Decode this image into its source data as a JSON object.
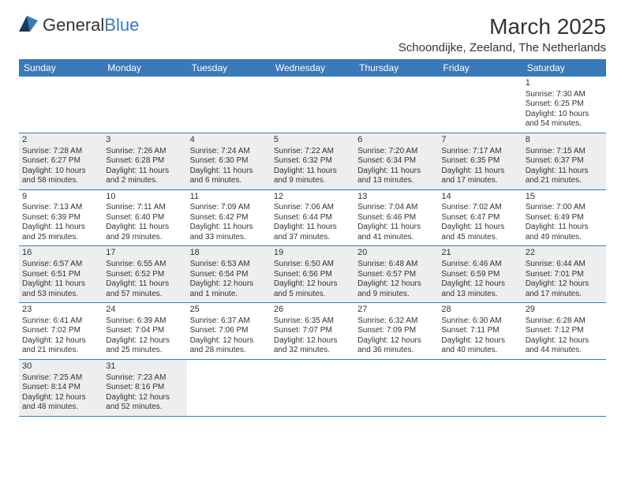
{
  "logo": {
    "text_a": "General",
    "text_b": "Blue"
  },
  "title": "March 2025",
  "location": "Schoondijke, Zeeland, The Netherlands",
  "colors": {
    "header_bg": "#3a7ab8",
    "header_text": "#ffffff",
    "shaded_bg": "#eeeeee",
    "border": "#3a7ab8",
    "text": "#333333"
  },
  "day_headers": [
    "Sunday",
    "Monday",
    "Tuesday",
    "Wednesday",
    "Thursday",
    "Friday",
    "Saturday"
  ],
  "weeks": [
    [
      {
        "blank": true
      },
      {
        "blank": true
      },
      {
        "blank": true
      },
      {
        "blank": true
      },
      {
        "blank": true
      },
      {
        "blank": true
      },
      {
        "n": "1",
        "sr": "Sunrise: 7:30 AM",
        "ss": "Sunset: 6:25 PM",
        "dl": "Daylight: 10 hours and 54 minutes.",
        "shade": false
      }
    ],
    [
      {
        "n": "2",
        "sr": "Sunrise: 7:28 AM",
        "ss": "Sunset: 6:27 PM",
        "dl": "Daylight: 10 hours and 58 minutes.",
        "shade": true
      },
      {
        "n": "3",
        "sr": "Sunrise: 7:26 AM",
        "ss": "Sunset: 6:28 PM",
        "dl": "Daylight: 11 hours and 2 minutes.",
        "shade": true
      },
      {
        "n": "4",
        "sr": "Sunrise: 7:24 AM",
        "ss": "Sunset: 6:30 PM",
        "dl": "Daylight: 11 hours and 6 minutes.",
        "shade": true
      },
      {
        "n": "5",
        "sr": "Sunrise: 7:22 AM",
        "ss": "Sunset: 6:32 PM",
        "dl": "Daylight: 11 hours and 9 minutes.",
        "shade": true
      },
      {
        "n": "6",
        "sr": "Sunrise: 7:20 AM",
        "ss": "Sunset: 6:34 PM",
        "dl": "Daylight: 11 hours and 13 minutes.",
        "shade": true
      },
      {
        "n": "7",
        "sr": "Sunrise: 7:17 AM",
        "ss": "Sunset: 6:35 PM",
        "dl": "Daylight: 11 hours and 17 minutes.",
        "shade": true
      },
      {
        "n": "8",
        "sr": "Sunrise: 7:15 AM",
        "ss": "Sunset: 6:37 PM",
        "dl": "Daylight: 11 hours and 21 minutes.",
        "shade": true
      }
    ],
    [
      {
        "n": "9",
        "sr": "Sunrise: 7:13 AM",
        "ss": "Sunset: 6:39 PM",
        "dl": "Daylight: 11 hours and 25 minutes.",
        "shade": false
      },
      {
        "n": "10",
        "sr": "Sunrise: 7:11 AM",
        "ss": "Sunset: 6:40 PM",
        "dl": "Daylight: 11 hours and 29 minutes.",
        "shade": false
      },
      {
        "n": "11",
        "sr": "Sunrise: 7:09 AM",
        "ss": "Sunset: 6:42 PM",
        "dl": "Daylight: 11 hours and 33 minutes.",
        "shade": false
      },
      {
        "n": "12",
        "sr": "Sunrise: 7:06 AM",
        "ss": "Sunset: 6:44 PM",
        "dl": "Daylight: 11 hours and 37 minutes.",
        "shade": false
      },
      {
        "n": "13",
        "sr": "Sunrise: 7:04 AM",
        "ss": "Sunset: 6:46 PM",
        "dl": "Daylight: 11 hours and 41 minutes.",
        "shade": false
      },
      {
        "n": "14",
        "sr": "Sunrise: 7:02 AM",
        "ss": "Sunset: 6:47 PM",
        "dl": "Daylight: 11 hours and 45 minutes.",
        "shade": false
      },
      {
        "n": "15",
        "sr": "Sunrise: 7:00 AM",
        "ss": "Sunset: 6:49 PM",
        "dl": "Daylight: 11 hours and 49 minutes.",
        "shade": false
      }
    ],
    [
      {
        "n": "16",
        "sr": "Sunrise: 6:57 AM",
        "ss": "Sunset: 6:51 PM",
        "dl": "Daylight: 11 hours and 53 minutes.",
        "shade": true
      },
      {
        "n": "17",
        "sr": "Sunrise: 6:55 AM",
        "ss": "Sunset: 6:52 PM",
        "dl": "Daylight: 11 hours and 57 minutes.",
        "shade": true
      },
      {
        "n": "18",
        "sr": "Sunrise: 6:53 AM",
        "ss": "Sunset: 6:54 PM",
        "dl": "Daylight: 12 hours and 1 minute.",
        "shade": true
      },
      {
        "n": "19",
        "sr": "Sunrise: 6:50 AM",
        "ss": "Sunset: 6:56 PM",
        "dl": "Daylight: 12 hours and 5 minutes.",
        "shade": true
      },
      {
        "n": "20",
        "sr": "Sunrise: 6:48 AM",
        "ss": "Sunset: 6:57 PM",
        "dl": "Daylight: 12 hours and 9 minutes.",
        "shade": true
      },
      {
        "n": "21",
        "sr": "Sunrise: 6:46 AM",
        "ss": "Sunset: 6:59 PM",
        "dl": "Daylight: 12 hours and 13 minutes.",
        "shade": true
      },
      {
        "n": "22",
        "sr": "Sunrise: 6:44 AM",
        "ss": "Sunset: 7:01 PM",
        "dl": "Daylight: 12 hours and 17 minutes.",
        "shade": true
      }
    ],
    [
      {
        "n": "23",
        "sr": "Sunrise: 6:41 AM",
        "ss": "Sunset: 7:02 PM",
        "dl": "Daylight: 12 hours and 21 minutes.",
        "shade": false
      },
      {
        "n": "24",
        "sr": "Sunrise: 6:39 AM",
        "ss": "Sunset: 7:04 PM",
        "dl": "Daylight: 12 hours and 25 minutes.",
        "shade": false
      },
      {
        "n": "25",
        "sr": "Sunrise: 6:37 AM",
        "ss": "Sunset: 7:06 PM",
        "dl": "Daylight: 12 hours and 28 minutes.",
        "shade": false
      },
      {
        "n": "26",
        "sr": "Sunrise: 6:35 AM",
        "ss": "Sunset: 7:07 PM",
        "dl": "Daylight: 12 hours and 32 minutes.",
        "shade": false
      },
      {
        "n": "27",
        "sr": "Sunrise: 6:32 AM",
        "ss": "Sunset: 7:09 PM",
        "dl": "Daylight: 12 hours and 36 minutes.",
        "shade": false
      },
      {
        "n": "28",
        "sr": "Sunrise: 6:30 AM",
        "ss": "Sunset: 7:11 PM",
        "dl": "Daylight: 12 hours and 40 minutes.",
        "shade": false
      },
      {
        "n": "29",
        "sr": "Sunrise: 6:28 AM",
        "ss": "Sunset: 7:12 PM",
        "dl": "Daylight: 12 hours and 44 minutes.",
        "shade": false
      }
    ],
    [
      {
        "n": "30",
        "sr": "Sunrise: 7:25 AM",
        "ss": "Sunset: 8:14 PM",
        "dl": "Daylight: 12 hours and 48 minutes.",
        "shade": true
      },
      {
        "n": "31",
        "sr": "Sunrise: 7:23 AM",
        "ss": "Sunset: 8:16 PM",
        "dl": "Daylight: 12 hours and 52 minutes.",
        "shade": true
      },
      {
        "blank": true
      },
      {
        "blank": true
      },
      {
        "blank": true
      },
      {
        "blank": true
      },
      {
        "blank": true
      }
    ]
  ]
}
